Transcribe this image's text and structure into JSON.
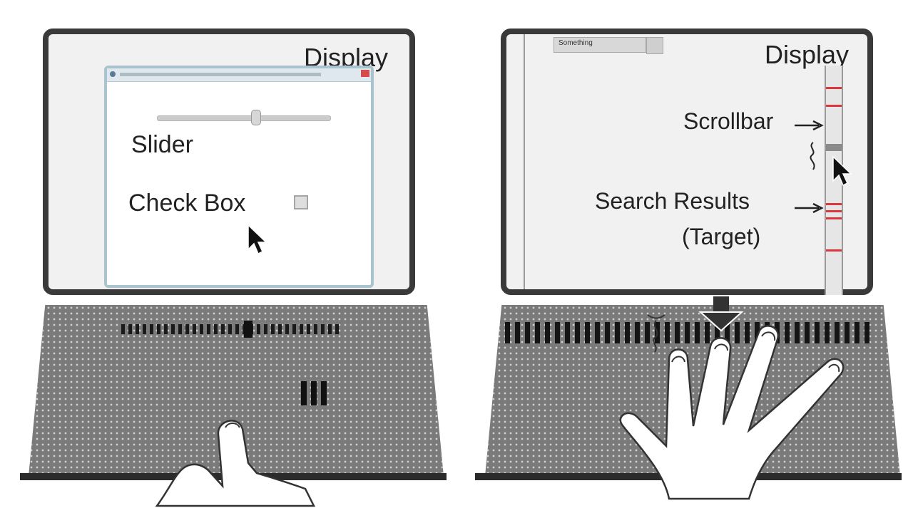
{
  "left_panel": {
    "display_label": "Display",
    "window": {
      "slider_label": "Slider",
      "checkbox_label": "Check Box",
      "checkbox_checked": false,
      "slider_value_fraction": 0.6
    }
  },
  "right_panel": {
    "display_label": "Display",
    "tab_label": "Something",
    "annotations": {
      "scrollbar": "Scrollbar",
      "search_results_line1": "Search Results",
      "search_results_line2": "(Target)"
    }
  },
  "colors": {
    "display_frame": "#3a3a3a",
    "keyboard_surface": "#7a7a7a",
    "search_result_marker": "#d9363e",
    "window_border": "#a9c3cf"
  },
  "icons": [
    "mouse-cursor-icon",
    "hand-icon",
    "down-arrow-icon",
    "vibration-icon"
  ]
}
